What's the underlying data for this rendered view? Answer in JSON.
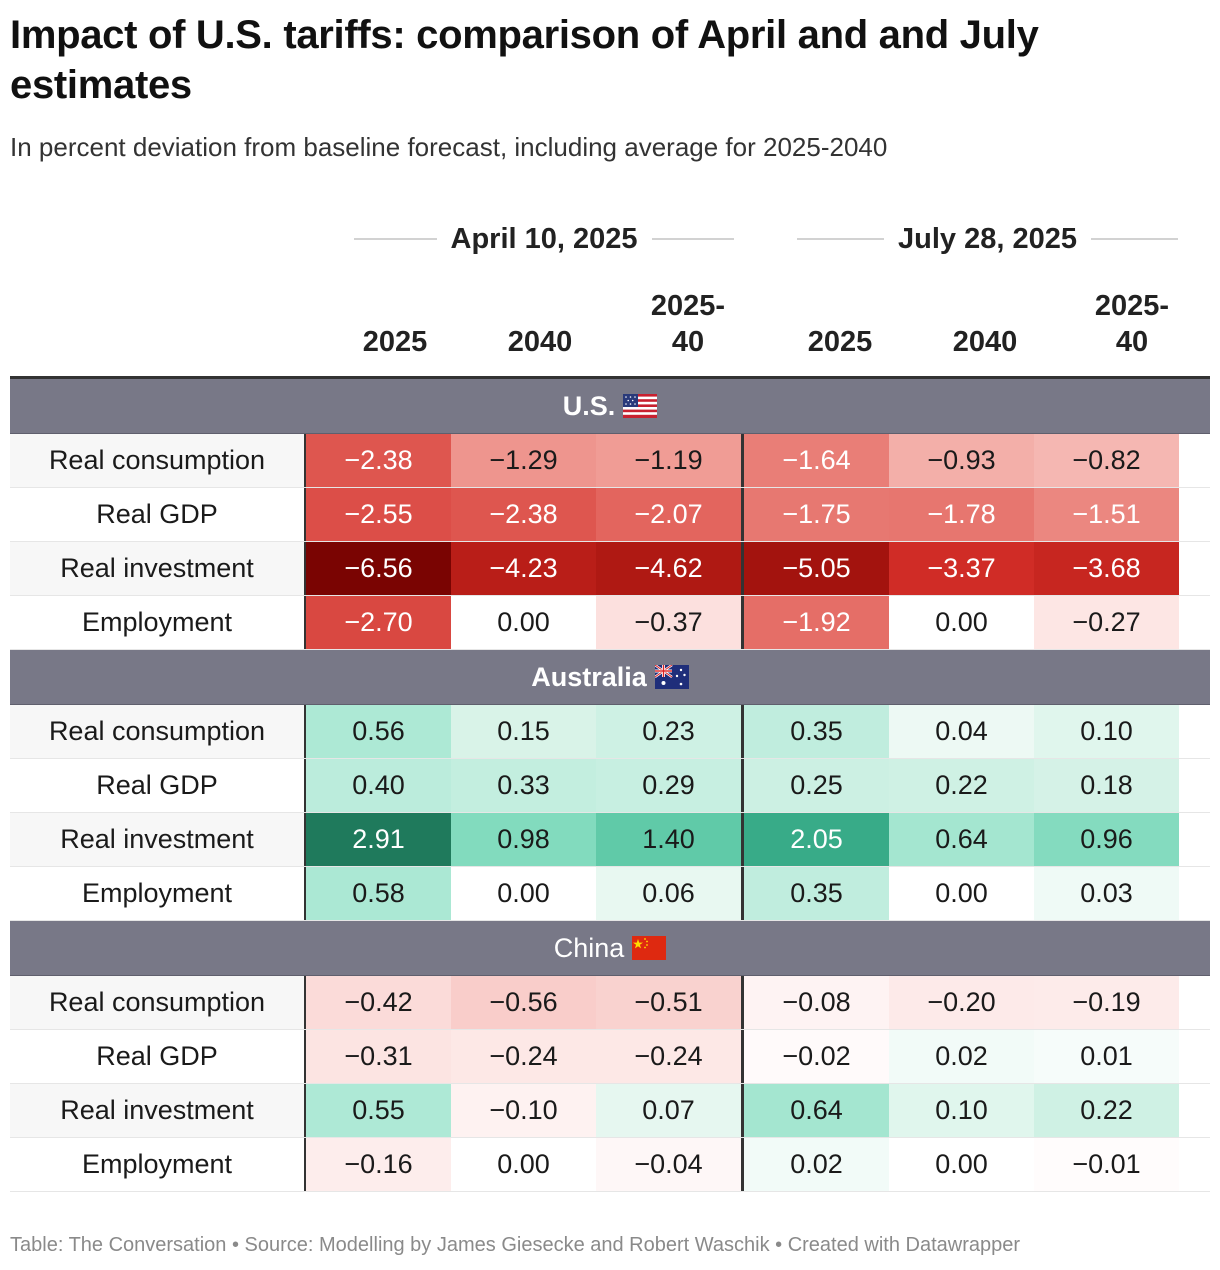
{
  "title": "Impact of U.S. tariffs: comparison of April and and July estimates",
  "subtitle": "In percent deviation from baseline forecast, including average for 2025-2040",
  "footer": "Table: The Conversation • Source: Modelling by James Giesecke and Robert Waschik • Created with Datawrapper",
  "colors": {
    "section_band": "#787887",
    "negative_max": "#7a0402",
    "positive_max": "#1f7a5c"
  },
  "chart_data": {
    "type": "table",
    "groups": [
      "April 10, 2025",
      "July 28, 2025"
    ],
    "columns": [
      "2025",
      "2040",
      "2025-\n40",
      "2025",
      "2040",
      "2025-\n40"
    ],
    "sections": [
      {
        "name": "U.S.",
        "flag": "us-flag",
        "bold": true,
        "rows": [
          {
            "label": "Real consumption",
            "values": [
              "−2.38",
              "−1.29",
              "−1.19",
              "−1.64",
              "−0.93",
              "−0.82"
            ]
          },
          {
            "label": "Real GDP",
            "values": [
              "−2.55",
              "−2.38",
              "−2.07",
              "−1.75",
              "−1.78",
              "−1.51"
            ]
          },
          {
            "label": "Real investment",
            "values": [
              "−6.56",
              "−4.23",
              "−4.62",
              "−5.05",
              "−3.37",
              "−3.68"
            ]
          },
          {
            "label": "Employment",
            "values": [
              "−2.70",
              "0.00",
              "−0.37",
              "−1.92",
              "0.00",
              "−0.27"
            ]
          }
        ]
      },
      {
        "name": "Australia",
        "flag": "australia-flag",
        "bold": true,
        "rows": [
          {
            "label": "Real consumption",
            "values": [
              "0.56",
              "0.15",
              "0.23",
              "0.35",
              "0.04",
              "0.10"
            ]
          },
          {
            "label": "Real GDP",
            "values": [
              "0.40",
              "0.33",
              "0.29",
              "0.25",
              "0.22",
              "0.18"
            ]
          },
          {
            "label": "Real investment",
            "values": [
              "2.91",
              "0.98",
              "1.40",
              "2.05",
              "0.64",
              "0.96"
            ]
          },
          {
            "label": "Employment",
            "values": [
              "0.58",
              "0.00",
              "0.06",
              "0.35",
              "0.00",
              "0.03"
            ]
          }
        ]
      },
      {
        "name": "China",
        "flag": "china-flag",
        "bold": false,
        "rows": [
          {
            "label": "Real consumption",
            "values": [
              "−0.42",
              "−0.56",
              "−0.51",
              "−0.08",
              "−0.20",
              "−0.19"
            ]
          },
          {
            "label": "Real GDP",
            "values": [
              "−0.31",
              "−0.24",
              "−0.24",
              "−0.02",
              "0.02",
              "0.01"
            ]
          },
          {
            "label": "Real investment",
            "values": [
              "0.55",
              "−0.10",
              "0.07",
              "0.64",
              "0.10",
              "0.22"
            ]
          },
          {
            "label": "Employment",
            "values": [
              "−0.16",
              "0.00",
              "−0.04",
              "0.02",
              "0.00",
              "−0.01"
            ]
          }
        ]
      }
    ]
  }
}
